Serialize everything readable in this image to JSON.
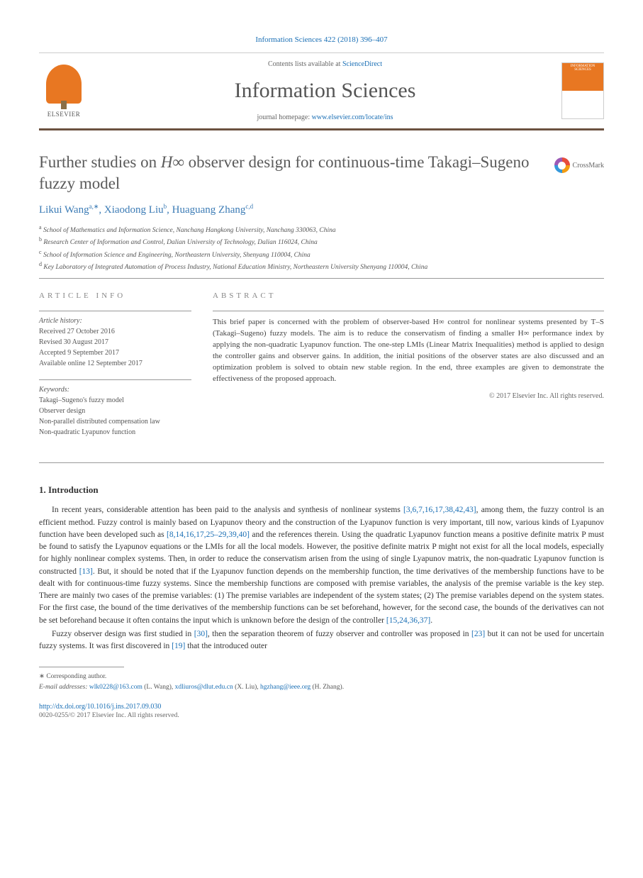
{
  "header": {
    "citation": "Information Sciences 422 (2018) 396–407",
    "contents_prefix": "Contents lists available at ",
    "sciencedirect": "ScienceDirect",
    "journal": "Information Sciences",
    "homepage_prefix": "journal homepage: ",
    "homepage_url": "www.elsevier.com/locate/ins",
    "elsevier": "ELSEVIER",
    "cover_text": "INFORMATION SCIENCES"
  },
  "article": {
    "title_pre": "Further studies on ",
    "title_math": "H∞",
    "title_post": " observer design for continuous-time Takagi–Sugeno fuzzy model",
    "crossmark": "CrossMark"
  },
  "authors": {
    "a1_name": "Likui Wang",
    "a1_sup": "a,∗",
    "a2_name": "Xiaodong Liu",
    "a2_sup": "b",
    "a3_name": "Huaguang Zhang",
    "a3_sup": "c,d"
  },
  "affiliations": {
    "a": "School of Mathematics and Information Science, Nanchang Hangkong University, Nanchang 330063, China",
    "b": "Research Center of Information and Control, Dalian University of Technology, Dalian 116024, China",
    "c": "School of Information Science and Engineering, Northeastern University, Shenyang 110004, China",
    "d": "Key Laboratory of Integrated Automation of Process Industry, National Education Ministry, Northeastern University Shenyang 110004, China"
  },
  "info": {
    "heading": "ARTICLE INFO",
    "history_label": "Article history:",
    "received": "Received 27 October 2016",
    "revised": "Revised 30 August 2017",
    "accepted": "Accepted 9 September 2017",
    "online": "Available online 12 September 2017",
    "keywords_label": "Keywords:",
    "kw1": "Takagi–Sugeno's fuzzy model",
    "kw2": "Observer design",
    "kw3": "Non-parallel distributed compensation law",
    "kw4": "Non-quadratic Lyapunov function"
  },
  "abstract": {
    "heading": "ABSTRACT",
    "text": "This brief paper is concerned with the problem of observer-based H∞ control for nonlinear systems presented by T–S (Takagi–Sugeno) fuzzy models. The aim is to reduce the conservatism of finding a smaller H∞ performance index by applying the non-quadratic Lyapunov function. The one-step LMIs (Linear Matrix Inequalities) method is applied to design the controller gains and observer gains. In addition, the initial positions of the observer states are also discussed and an optimization problem is solved to obtain new stable region. In the end, three examples are given to demonstrate the effectiveness of the proposed approach.",
    "copyright": "© 2017 Elsevier Inc. All rights reserved."
  },
  "intro": {
    "heading": "1. Introduction",
    "p1_a": "In recent years, considerable attention has been paid to the analysis and synthesis of nonlinear systems ",
    "p1_ref1": "[3,6,7,16,17,38,42,43]",
    "p1_b": ", among them, the fuzzy control is an efficient method. Fuzzy control is mainly based on Lyapunov theory and the construction of the Lyapunov function is very important, till now, various kinds of Lyapunov function have been developed such as ",
    "p1_ref2": "[8,14,16,17,25–29,39,40]",
    "p1_c": " and the references therein. Using the quadratic Lyapunov function means a positive definite matrix P must be found to satisfy the Lyapunov equations or the LMIs for all the local models. However, the positive definite matrix P might not exist for all the local models, especially for highly nonlinear complex systems. Then, in order to reduce the conservatism arisen from the using of single Lyapunov matrix, the non-quadratic Lyapunov function is constructed ",
    "p1_ref3": "[13]",
    "p1_d": ". But, it should be noted that if the Lyapunov function depends on the membership function, the time derivatives of the membership functions have to be dealt with for continuous-time fuzzy systems. Since the membership functions are composed with premise variables, the analysis of the premise variable is the key step. There are mainly two cases of the premise variables: (1) The premise variables are independent of the system states; (2) The premise variables depend on the system states. For the first case, the bound of the time derivatives of the membership functions can be set beforehand, however, for the second case, the bounds of the derivatives can not be set beforehand because it often contains the input which is unknown before the design of the controller ",
    "p1_ref4": "[15,24,36,37]",
    "p1_e": ".",
    "p2_a": "Fuzzy observer design was first studied in ",
    "p2_ref1": "[30]",
    "p2_b": ", then the separation theorem of fuzzy observer and controller was proposed in ",
    "p2_ref2": "[23]",
    "p2_c": " but it can not be used for uncertain fuzzy systems. It was first discovered in ",
    "p2_ref3": "[19]",
    "p2_d": " that the introduced outer"
  },
  "footnotes": {
    "corresp": "∗ Corresponding author.",
    "email_label": "E-mail addresses: ",
    "e1": "wlk0228@163.com",
    "e1_name": " (L. Wang), ",
    "e2": "xdliuros@dlut.edu.cn",
    "e2_name": " (X. Liu), ",
    "e3": "hgzhang@ieee.org",
    "e3_name": " (H. Zhang)."
  },
  "footer": {
    "doi": "http://dx.doi.org/10.1016/j.ins.2017.09.030",
    "copyright": "0020-0255/© 2017 Elsevier Inc. All rights reserved."
  },
  "colors": {
    "link": "#1a6fb5",
    "orange": "#e87722",
    "border": "#6b5140"
  }
}
